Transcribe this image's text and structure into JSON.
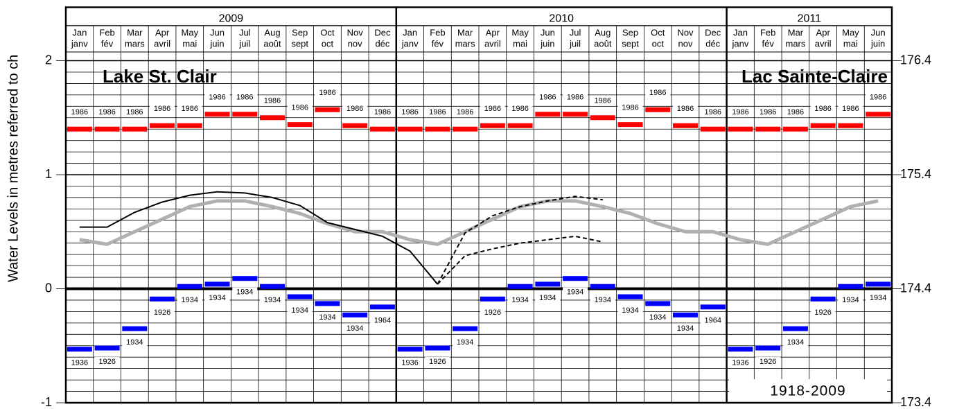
{
  "chart_data": {
    "type": "bar",
    "y_axis_label": "Water Levels in metres referred to ch",
    "annotations": [
      "Lake St. Clair",
      "Lac Sainte-Claire",
      "1918-2009"
    ],
    "years": [
      {
        "label": "2009",
        "months": 12
      },
      {
        "label": "2010",
        "months": 12
      },
      {
        "label": "2011",
        "months": 6
      }
    ],
    "categories": [
      [
        "Jan",
        "janv"
      ],
      [
        "Feb",
        "fév"
      ],
      [
        "Mar",
        "mars"
      ],
      [
        "Apr",
        "avril"
      ],
      [
        "May",
        "mai"
      ],
      [
        "Jun",
        "juin"
      ],
      [
        "Jul",
        "juil"
      ],
      [
        "Aug",
        "août"
      ],
      [
        "Sep",
        "sept"
      ],
      [
        "Oct",
        "oct"
      ],
      [
        "Nov",
        "nov"
      ],
      [
        "Dec",
        "déc"
      ],
      [
        "Jan",
        "janv"
      ],
      [
        "Feb",
        "fév"
      ],
      [
        "Mar",
        "mars"
      ],
      [
        "Apr",
        "avril"
      ],
      [
        "May",
        "mai"
      ],
      [
        "Jun",
        "juin"
      ],
      [
        "Jul",
        "juil"
      ],
      [
        "Aug",
        "août"
      ],
      [
        "Sep",
        "sept"
      ],
      [
        "Oct",
        "oct"
      ],
      [
        "Nov",
        "nov"
      ],
      [
        "Dec",
        "déc"
      ],
      [
        "Jan",
        "janv"
      ],
      [
        "Feb",
        "fév"
      ],
      [
        "Mar",
        "mars"
      ],
      [
        "Apr",
        "avril"
      ],
      [
        "May",
        "mai"
      ],
      [
        "Jun",
        "juin"
      ]
    ],
    "ylim": [
      -1,
      2.45
    ],
    "yticks": [
      -1,
      0,
      1,
      2
    ],
    "y2lim": [
      173.4,
      176.85
    ],
    "y2ticks": [
      173.4,
      174.4,
      175.4,
      176.4
    ],
    "ygrid": [
      -0.9,
      -0.8,
      -0.7,
      -0.6,
      -0.5,
      -0.4,
      -0.3,
      -0.2,
      -0.1,
      0.1,
      0.2,
      0.3,
      0.4,
      0.5,
      0.6,
      0.7,
      0.8,
      0.9,
      1.1,
      1.2,
      1.3,
      1.4,
      1.5,
      1.6,
      1.7,
      1.8,
      1.9
    ],
    "series": [
      {
        "type": "bar",
        "color": "#ff0000",
        "label_side": "above",
        "values": [
          1.4,
          1.4,
          1.4,
          1.43,
          1.43,
          1.53,
          1.53,
          1.5,
          1.44,
          1.57,
          1.43,
          1.4,
          1.4,
          1.4,
          1.4,
          1.43,
          1.43,
          1.53,
          1.53,
          1.5,
          1.44,
          1.57,
          1.43,
          1.4,
          1.4,
          1.4,
          1.4,
          1.43,
          1.43,
          1.53
        ],
        "record_years": [
          "1986",
          "1986",
          "1986",
          "1986",
          "1986",
          "1986",
          "1986",
          "1986",
          "1986",
          "1986",
          "1986",
          "1986",
          "1986",
          "1986",
          "1986",
          "1986",
          "1986",
          "1986",
          "1986",
          "1986",
          "1986",
          "1986",
          "1986",
          "1986",
          "1986",
          "1986",
          "1986",
          "1986",
          "1986",
          "1986"
        ]
      },
      {
        "type": "bar",
        "color": "#0000ff",
        "label_side": "below",
        "values": [
          -0.53,
          -0.52,
          -0.35,
          -0.09,
          0.02,
          0.04,
          0.09,
          0.02,
          -0.07,
          -0.13,
          -0.23,
          -0.16,
          -0.53,
          -0.52,
          -0.35,
          -0.09,
          0.02,
          0.04,
          0.09,
          0.02,
          -0.07,
          -0.13,
          -0.23,
          -0.16,
          -0.53,
          -0.52,
          -0.35,
          -0.09,
          0.02,
          0.04
        ],
        "record_years": [
          "1936",
          "1926",
          "1934",
          "1926",
          "1934",
          "1934",
          "1934",
          "1934",
          "1934",
          "1934",
          "1934",
          "1964",
          "1936",
          "1926",
          "1934",
          "1926",
          "1934",
          "1934",
          "1934",
          "1934",
          "1934",
          "1934",
          "1934",
          "1964",
          "1936",
          "1926",
          "1934",
          "1926",
          "1934",
          "1934"
        ]
      },
      {
        "type": "line",
        "color": "#b0b0b0",
        "width": 5,
        "dashed": false,
        "values": [
          0.43,
          0.39,
          0.5,
          0.61,
          0.72,
          0.77,
          0.77,
          0.72,
          0.66,
          0.57,
          0.5,
          0.5,
          0.43,
          0.39,
          0.5,
          0.61,
          0.72,
          0.77,
          0.77,
          0.72,
          0.66,
          0.57,
          0.5,
          0.5,
          0.43,
          0.39,
          0.5,
          0.61,
          0.72,
          0.77
        ]
      },
      {
        "type": "line",
        "color": "#000000",
        "width": 2,
        "dashed": false,
        "values": [
          0.54,
          0.54,
          0.67,
          0.76,
          0.82,
          0.85,
          0.84,
          0.8,
          0.73,
          0.58,
          0.52,
          0.46,
          0.33,
          0.04,
          null,
          null,
          null,
          null,
          null,
          null,
          null,
          null,
          null,
          null,
          null,
          null,
          null,
          null,
          null,
          null
        ]
      },
      {
        "type": "line",
        "color": "#000000",
        "width": 2,
        "dashed": true,
        "values": [
          null,
          null,
          null,
          null,
          null,
          null,
          null,
          null,
          null,
          null,
          null,
          null,
          null,
          0.04,
          0.49,
          0.64,
          0.72,
          0.77,
          0.81,
          0.78,
          null,
          null,
          null,
          null,
          null,
          null,
          null,
          null,
          null,
          null
        ]
      },
      {
        "type": "line",
        "color": "#000000",
        "width": 2,
        "dashed": true,
        "values": [
          null,
          null,
          null,
          null,
          null,
          null,
          null,
          null,
          null,
          null,
          null,
          null,
          null,
          0.04,
          0.29,
          0.35,
          0.4,
          0.43,
          0.46,
          0.41,
          null,
          null,
          null,
          null,
          null,
          null,
          null,
          null,
          null,
          null
        ]
      }
    ]
  }
}
